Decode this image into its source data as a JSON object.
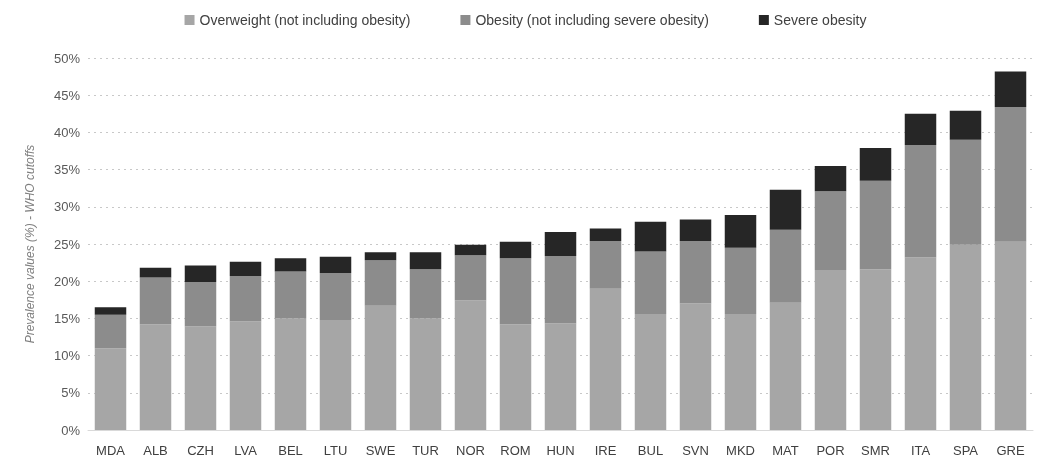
{
  "chart_data": {
    "type": "bar",
    "stacked": true,
    "ylabel": "Prevalence values (%) - WHO cutoffs",
    "categories": [
      "MDA",
      "ALB",
      "CZH",
      "LVA",
      "BEL",
      "LTU",
      "SWE",
      "TUR",
      "NOR",
      "ROM",
      "HUN",
      "IRE",
      "BUL",
      "SVN",
      "MKD",
      "MAT",
      "POR",
      "SMR",
      "ITA",
      "SPA",
      "GRE"
    ],
    "series": [
      {
        "name": "Overweight (not including obesity)",
        "color": "#a6a6a6",
        "values": [
          11,
          14.2,
          13.9,
          14.6,
          15,
          14.8,
          16.7,
          15,
          17.4,
          14.2,
          14.3,
          19,
          15.6,
          17,
          15.6,
          17.1,
          21.5,
          21.6,
          23.2,
          24.9,
          25.3
        ]
      },
      {
        "name": "Obesity (not including severe obesity)",
        "color": "#8c8c8c",
        "values": [
          4.5,
          6.3,
          6,
          6.1,
          6.3,
          6.3,
          6.1,
          6.6,
          6.1,
          8.9,
          9.1,
          6.4,
          8.4,
          8.4,
          8.9,
          9.8,
          10.6,
          11.9,
          15.1,
          14.1,
          18.1
        ]
      },
      {
        "name": "Severe obesity",
        "color": "#262626",
        "values": [
          1,
          1.3,
          2.2,
          1.9,
          1.8,
          2.2,
          1.1,
          2.3,
          1.4,
          2.2,
          3.2,
          1.7,
          4,
          2.9,
          4.4,
          5.4,
          3.4,
          4.4,
          4.2,
          3.9,
          4.8
        ]
      }
    ],
    "ylim": [
      0,
      50
    ],
    "yticks": [
      {
        "value": 0,
        "label": "0%"
      },
      {
        "value": 5,
        "label": "5%"
      },
      {
        "value": 10,
        "label": "10%"
      },
      {
        "value": 15,
        "label": "15%"
      },
      {
        "value": 20,
        "label": "20%"
      },
      {
        "value": 25,
        "label": "25%"
      },
      {
        "value": 30,
        "label": "30%"
      },
      {
        "value": 35,
        "label": "35%"
      },
      {
        "value": 40,
        "label": "40%"
      },
      {
        "value": 45,
        "label": "45%"
      },
      {
        "value": 50,
        "label": "50%"
      }
    ],
    "grid": "y",
    "legend": "top"
  }
}
